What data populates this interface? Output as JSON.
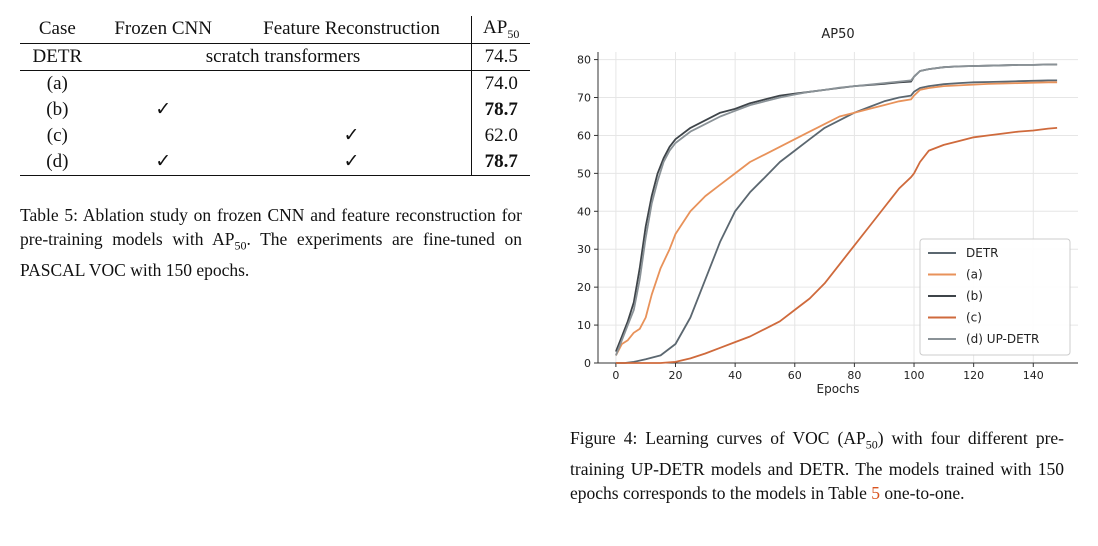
{
  "table": {
    "headers": {
      "case": "Case",
      "frozen": "Frozen CNN",
      "feature": "Feature Reconstruction",
      "ap_main": "AP",
      "ap_sub": "50"
    },
    "detr_row": {
      "case": "DETR",
      "span": "scratch transformers",
      "ap": "74.5"
    },
    "rows": [
      {
        "case": "(a)",
        "frozen": "",
        "feature": "",
        "ap": "74.0",
        "bold": false
      },
      {
        "case": "(b)",
        "frozen": "✓",
        "feature": "",
        "ap": "78.7",
        "bold": true
      },
      {
        "case": "(c)",
        "frozen": "",
        "feature": "✓",
        "ap": "62.0",
        "bold": false
      },
      {
        "case": "(d)",
        "frozen": "✓",
        "feature": "✓",
        "ap": "78.7",
        "bold": true
      }
    ],
    "caption": {
      "part1": "Table 5: Ablation study on frozen CNN and feature reconstruction for pre-training models with AP",
      "sub": "50",
      "part2": ". The experiments are fine-tuned on PASCAL VOC with 150 epochs."
    }
  },
  "figure_caption": {
    "part1": "Figure 4: Learning curves of VOC (AP",
    "sub": "50",
    "part2": ") with four different pre-training UP-DETR models and DETR. The models trained with 150 epochs corresponds to the models in Table ",
    "ref": "5",
    "part3": " one-to-one."
  },
  "chart_data": {
    "type": "line",
    "title": "AP50",
    "xlabel": "Epochs",
    "ylabel": "",
    "xlim": [
      -6,
      155
    ],
    "ylim": [
      0,
      82
    ],
    "xticks": [
      0,
      20,
      40,
      60,
      80,
      100,
      120,
      140
    ],
    "yticks": [
      0,
      10,
      20,
      30,
      40,
      50,
      60,
      70,
      80
    ],
    "grid": true,
    "legend_position": "lower-right",
    "series": [
      {
        "name": "DETR",
        "color": "#5b6770",
        "x": [
          0,
          3,
          6,
          10,
          15,
          20,
          25,
          30,
          35,
          40,
          45,
          50,
          55,
          60,
          65,
          70,
          75,
          80,
          85,
          90,
          95,
          99,
          100,
          102,
          105,
          110,
          115,
          120,
          125,
          130,
          135,
          140,
          145,
          148
        ],
        "y": [
          0,
          0,
          0.3,
          1,
          2,
          5,
          12,
          22,
          32,
          40,
          45,
          49,
          53,
          56,
          59,
          62,
          64,
          66,
          67.5,
          69,
          70,
          70.5,
          71.5,
          72.5,
          73,
          73.5,
          73.8,
          74,
          74.1,
          74.2,
          74.3,
          74.4,
          74.5,
          74.5
        ]
      },
      {
        "name": "(a)",
        "color": "#e8925a",
        "x": [
          0,
          2,
          4,
          6,
          8,
          10,
          12,
          15,
          18,
          20,
          25,
          30,
          35,
          40,
          45,
          50,
          55,
          60,
          65,
          70,
          75,
          80,
          85,
          90,
          95,
          99,
          100,
          102,
          105,
          110,
          115,
          120,
          125,
          130,
          135,
          140,
          145,
          148
        ],
        "y": [
          2,
          5,
          6,
          8,
          9,
          12,
          18,
          25,
          30,
          34,
          40,
          44,
          47,
          50,
          53,
          55,
          57,
          59,
          61,
          63,
          65,
          66,
          67,
          68,
          69,
          69.5,
          70.5,
          72,
          72.5,
          73,
          73.2,
          73.4,
          73.6,
          73.7,
          73.8,
          73.9,
          74,
          74
        ]
      },
      {
        "name": "(b)",
        "color": "#3e4449",
        "x": [
          0,
          2,
          4,
          6,
          8,
          10,
          12,
          14,
          16,
          18,
          20,
          25,
          30,
          35,
          40,
          45,
          50,
          55,
          60,
          65,
          70,
          75,
          80,
          85,
          90,
          95,
          99,
          100,
          102,
          105,
          110,
          115,
          120,
          125,
          130,
          135,
          140,
          145,
          148
        ],
        "y": [
          3,
          7,
          11,
          16,
          25,
          36,
          44,
          50,
          54,
          57,
          59,
          62,
          64,
          66,
          67,
          68.5,
          69.5,
          70.5,
          71,
          71.5,
          72,
          72.5,
          73,
          73.3,
          73.6,
          74,
          74.2,
          75.5,
          77,
          77.5,
          78,
          78.2,
          78.3,
          78.4,
          78.5,
          78.6,
          78.6,
          78.7,
          78.7
        ]
      },
      {
        "name": "(c)",
        "color": "#cf6a3c",
        "x": [
          0,
          5,
          10,
          15,
          20,
          25,
          30,
          35,
          40,
          45,
          50,
          55,
          60,
          65,
          70,
          75,
          80,
          85,
          90,
          95,
          99,
          100,
          102,
          105,
          110,
          115,
          120,
          125,
          130,
          135,
          140,
          145,
          148
        ],
        "y": [
          0,
          0,
          0,
          0,
          0.3,
          1.2,
          2.5,
          4,
          5.5,
          7,
          9,
          11,
          14,
          17,
          21,
          26,
          31,
          36,
          41,
          46,
          49,
          50,
          53,
          56,
          57.5,
          58.5,
          59.5,
          60,
          60.5,
          61,
          61.3,
          61.8,
          62
        ]
      },
      {
        "name": "(d) UP-DETR",
        "color": "#8a9297",
        "x": [
          0,
          2,
          4,
          6,
          8,
          10,
          12,
          14,
          16,
          18,
          20,
          25,
          30,
          35,
          40,
          45,
          50,
          55,
          60,
          65,
          70,
          75,
          80,
          85,
          90,
          95,
          99,
          100,
          102,
          105,
          110,
          115,
          120,
          125,
          130,
          135,
          140,
          145,
          148
        ],
        "y": [
          2,
          6,
          10,
          14,
          22,
          33,
          42,
          48,
          53,
          56,
          58,
          61,
          63,
          65,
          66.5,
          68,
          69,
          70,
          70.8,
          71.5,
          72,
          72.6,
          73,
          73.4,
          73.8,
          74.2,
          74.5,
          75.5,
          77,
          77.5,
          78,
          78.2,
          78.3,
          78.4,
          78.5,
          78.6,
          78.6,
          78.7,
          78.7
        ]
      }
    ]
  }
}
